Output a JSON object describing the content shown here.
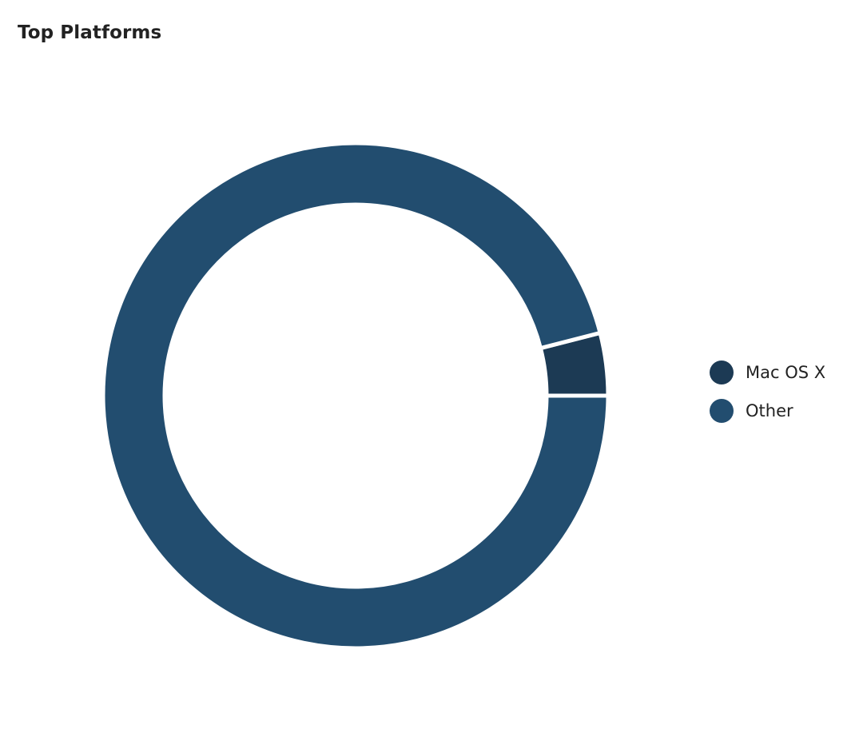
{
  "header": {
    "title": "Top Platforms"
  },
  "chart_data": {
    "type": "pie",
    "variant": "donut",
    "title": "Top Platforms",
    "legend_position": "right",
    "slices": [
      {
        "name": "Mac OS X",
        "value": 4,
        "color": "#1c3a54"
      },
      {
        "name": "Other",
        "value": 96,
        "color": "#224d6f"
      }
    ]
  }
}
